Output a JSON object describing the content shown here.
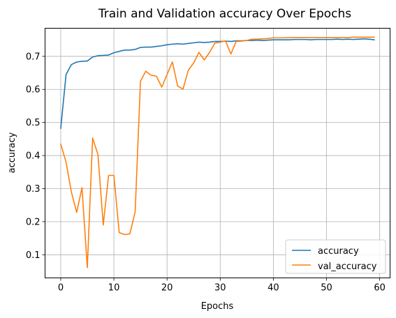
{
  "chart_data": {
    "type": "line",
    "title": "Train and Validation accuracy Over Epochs",
    "xlabel": "Epochs",
    "ylabel": "accuracy",
    "xlim": [
      -2.95,
      61.95
    ],
    "ylim": [
      0.03,
      0.785
    ],
    "xticks": [
      0,
      10,
      20,
      30,
      40,
      50,
      60
    ],
    "yticks": [
      0.1,
      0.2,
      0.3,
      0.4,
      0.5,
      0.6,
      0.7
    ],
    "ytick_labels": [
      "0.1",
      "0.2",
      "0.3",
      "0.4",
      "0.5",
      "0.6",
      "0.7"
    ],
    "grid": true,
    "legend_position": "lower-right",
    "x": [
      0,
      1,
      2,
      3,
      4,
      5,
      6,
      7,
      8,
      9,
      10,
      11,
      12,
      13,
      14,
      15,
      16,
      17,
      18,
      19,
      20,
      21,
      22,
      23,
      24,
      25,
      26,
      27,
      28,
      29,
      30,
      31,
      32,
      33,
      34,
      35,
      36,
      37,
      38,
      39,
      40,
      41,
      42,
      43,
      44,
      45,
      46,
      47,
      48,
      49,
      50,
      51,
      52,
      53,
      54,
      55,
      56,
      57,
      58,
      59
    ],
    "series": [
      {
        "name": "accuracy",
        "color": "#1f77b4",
        "values": [
          0.482,
          0.645,
          0.675,
          0.683,
          0.685,
          0.686,
          0.698,
          0.702,
          0.703,
          0.704,
          0.711,
          0.715,
          0.719,
          0.719,
          0.721,
          0.727,
          0.728,
          0.728,
          0.73,
          0.732,
          0.735,
          0.737,
          0.738,
          0.737,
          0.739,
          0.741,
          0.743,
          0.742,
          0.743,
          0.745,
          0.745,
          0.746,
          0.745,
          0.747,
          0.747,
          0.748,
          0.748,
          0.749,
          0.748,
          0.749,
          0.75,
          0.75,
          0.75,
          0.75,
          0.751,
          0.751,
          0.751,
          0.75,
          0.751,
          0.751,
          0.751,
          0.751,
          0.752,
          0.751,
          0.752,
          0.751,
          0.752,
          0.753,
          0.752,
          0.75
        ]
      },
      {
        "name": "val_accuracy",
        "color": "#ff7f0e",
        "values": [
          0.435,
          0.38,
          0.29,
          0.228,
          0.303,
          0.061,
          0.453,
          0.403,
          0.19,
          0.34,
          0.34,
          0.167,
          0.161,
          0.163,
          0.23,
          0.625,
          0.655,
          0.643,
          0.64,
          0.607,
          0.645,
          0.683,
          0.61,
          0.601,
          0.658,
          0.68,
          0.712,
          0.689,
          0.712,
          0.74,
          0.743,
          0.747,
          0.707,
          0.745,
          0.746,
          0.748,
          0.752,
          0.752,
          0.753,
          0.754,
          0.756,
          0.756,
          0.756,
          0.757,
          0.757,
          0.757,
          0.757,
          0.757,
          0.757,
          0.757,
          0.757,
          0.757,
          0.757,
          0.757,
          0.757,
          0.758,
          0.758,
          0.758,
          0.758,
          0.758
        ]
      }
    ]
  }
}
